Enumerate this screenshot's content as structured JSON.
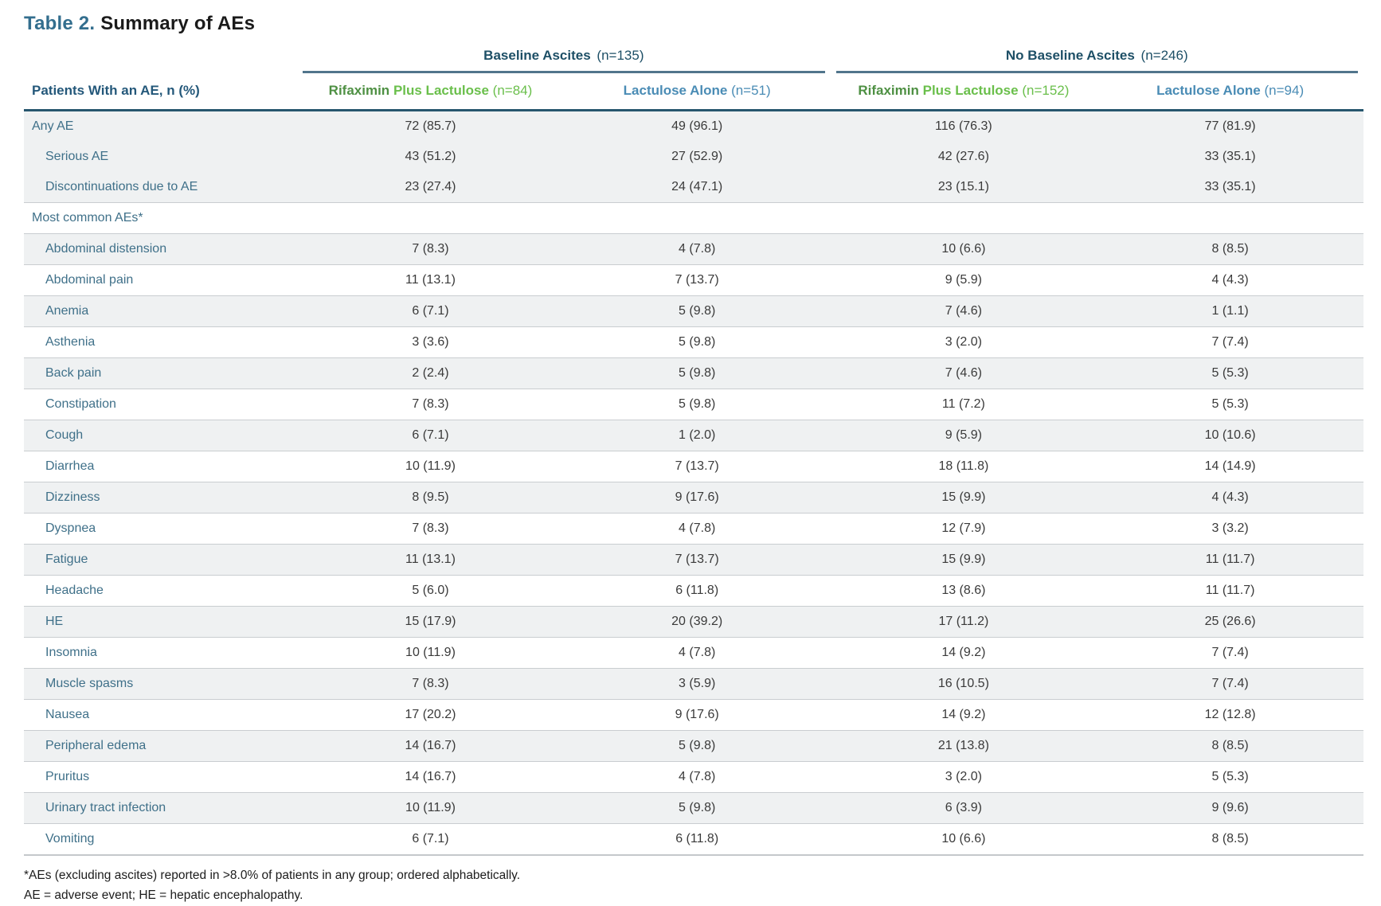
{
  "page_title": {
    "prefix": "Table 2.",
    "title": "Summary of AEs"
  },
  "colors": {
    "title_accent": "#336e8e",
    "group_header_text": "#1d4f66",
    "group_underline": "#51758c",
    "header_rule": "#27566e",
    "rifaximin_green_dark": "#4e9043",
    "rifaximin_green_light": "#6abf4b",
    "lactulose_blue": "#4a8cb5",
    "row_label_teal": "#3f7089",
    "shaded_row_bg": "#eff1f2"
  },
  "table": {
    "row_header": "Patients With an AE, n (%)",
    "groups": [
      {
        "label": "Baseline Ascites",
        "n": "(n=135)"
      },
      {
        "label": "No Baseline Ascites",
        "n": "(n=246)"
      }
    ],
    "columns": [
      {
        "brand": "Rifaximin",
        "rest": "Plus Lactulose",
        "n": "(n=84)",
        "kind": "rifaximin"
      },
      {
        "label": "Lactulose Alone",
        "n": "(n=51)",
        "kind": "lactulose"
      },
      {
        "brand": "Rifaximin",
        "rest": "Plus Lactulose",
        "n": "(n=152)",
        "kind": "rifaximin"
      },
      {
        "label": "Lactulose Alone",
        "n": "(n=94)",
        "kind": "lactulose"
      }
    ],
    "rows": [
      {
        "label": "Any AE",
        "indent": false,
        "shaded": true,
        "sep": false,
        "values": [
          "72 (85.7)",
          "49 (96.1)",
          "116 (76.3)",
          "77 (81.9)"
        ]
      },
      {
        "label": "Serious AE",
        "indent": true,
        "shaded": true,
        "sep": false,
        "values": [
          "43 (51.2)",
          "27 (52.9)",
          "42 (27.6)",
          "33 (35.1)"
        ]
      },
      {
        "label": "Discontinuations due to AE",
        "indent": true,
        "shaded": true,
        "sep": false,
        "values": [
          "23 (27.4)",
          "24 (47.1)",
          "23 (15.1)",
          "33 (35.1)"
        ]
      },
      {
        "label": "Most common AEs*",
        "indent": false,
        "shaded": false,
        "sep": true,
        "values": [
          "",
          "",
          "",
          ""
        ]
      },
      {
        "label": "Abdominal distension",
        "indent": true,
        "shaded": true,
        "sep": true,
        "values": [
          "7 (8.3)",
          "4 (7.8)",
          "10 (6.6)",
          "8 (8.5)"
        ]
      },
      {
        "label": "Abdominal pain",
        "indent": true,
        "shaded": false,
        "sep": true,
        "values": [
          "11 (13.1)",
          "7 (13.7)",
          "9 (5.9)",
          "4 (4.3)"
        ]
      },
      {
        "label": "Anemia",
        "indent": true,
        "shaded": true,
        "sep": true,
        "values": [
          "6 (7.1)",
          "5 (9.8)",
          "7 (4.6)",
          "1 (1.1)"
        ]
      },
      {
        "label": "Asthenia",
        "indent": true,
        "shaded": false,
        "sep": true,
        "values": [
          "3 (3.6)",
          "5 (9.8)",
          "3 (2.0)",
          "7 (7.4)"
        ]
      },
      {
        "label": "Back pain",
        "indent": true,
        "shaded": true,
        "sep": true,
        "values": [
          "2 (2.4)",
          "5 (9.8)",
          "7 (4.6)",
          "5 (5.3)"
        ]
      },
      {
        "label": "Constipation",
        "indent": true,
        "shaded": false,
        "sep": true,
        "values": [
          "7 (8.3)",
          "5 (9.8)",
          "11 (7.2)",
          "5 (5.3)"
        ]
      },
      {
        "label": "Cough",
        "indent": true,
        "shaded": true,
        "sep": true,
        "values": [
          "6 (7.1)",
          "1 (2.0)",
          "9 (5.9)",
          "10 (10.6)"
        ]
      },
      {
        "label": "Diarrhea",
        "indent": true,
        "shaded": false,
        "sep": true,
        "values": [
          "10 (11.9)",
          "7 (13.7)",
          "18 (11.8)",
          "14 (14.9)"
        ]
      },
      {
        "label": "Dizziness",
        "indent": true,
        "shaded": true,
        "sep": true,
        "values": [
          "8 (9.5)",
          "9 (17.6)",
          "15 (9.9)",
          "4 (4.3)"
        ]
      },
      {
        "label": "Dyspnea",
        "indent": true,
        "shaded": false,
        "sep": true,
        "values": [
          "7 (8.3)",
          "4 (7.8)",
          "12 (7.9)",
          "3 (3.2)"
        ]
      },
      {
        "label": "Fatigue",
        "indent": true,
        "shaded": true,
        "sep": true,
        "values": [
          "11 (13.1)",
          "7 (13.7)",
          "15 (9.9)",
          "11 (11.7)"
        ]
      },
      {
        "label": "Headache",
        "indent": true,
        "shaded": false,
        "sep": true,
        "values": [
          "5 (6.0)",
          "6 (11.8)",
          "13 (8.6)",
          "11 (11.7)"
        ]
      },
      {
        "label": "HE",
        "indent": true,
        "shaded": true,
        "sep": true,
        "values": [
          "15 (17.9)",
          "20 (39.2)",
          "17 (11.2)",
          "25 (26.6)"
        ]
      },
      {
        "label": "Insomnia",
        "indent": true,
        "shaded": false,
        "sep": true,
        "values": [
          "10 (11.9)",
          "4 (7.8)",
          "14 (9.2)",
          "7 (7.4)"
        ]
      },
      {
        "label": "Muscle spasms",
        "indent": true,
        "shaded": true,
        "sep": true,
        "values": [
          "7 (8.3)",
          "3 (5.9)",
          "16 (10.5)",
          "7 (7.4)"
        ]
      },
      {
        "label": "Nausea",
        "indent": true,
        "shaded": false,
        "sep": true,
        "values": [
          "17 (20.2)",
          "9 (17.6)",
          "14 (9.2)",
          "12 (12.8)"
        ]
      },
      {
        "label": "Peripheral edema",
        "indent": true,
        "shaded": true,
        "sep": true,
        "values": [
          "14 (16.7)",
          "5 (9.8)",
          "21 (13.8)",
          "8 (8.5)"
        ]
      },
      {
        "label": "Pruritus",
        "indent": true,
        "shaded": false,
        "sep": true,
        "values": [
          "14 (16.7)",
          "4 (7.8)",
          "3 (2.0)",
          "5 (5.3)"
        ]
      },
      {
        "label": "Urinary tract infection",
        "indent": true,
        "shaded": true,
        "sep": true,
        "values": [
          "10 (11.9)",
          "5 (9.8)",
          "6 (3.9)",
          "9 (9.6)"
        ]
      },
      {
        "label": "Vomiting",
        "indent": true,
        "shaded": false,
        "sep": true,
        "values": [
          "6 (7.1)",
          "6 (11.8)",
          "10 (6.6)",
          "8 (8.5)"
        ]
      }
    ]
  },
  "footnotes": [
    "*AEs (excluding ascites) reported in >8.0% of patients in any group; ordered alphabetically.",
    "AE = adverse event; HE = hepatic encephalopathy."
  ]
}
